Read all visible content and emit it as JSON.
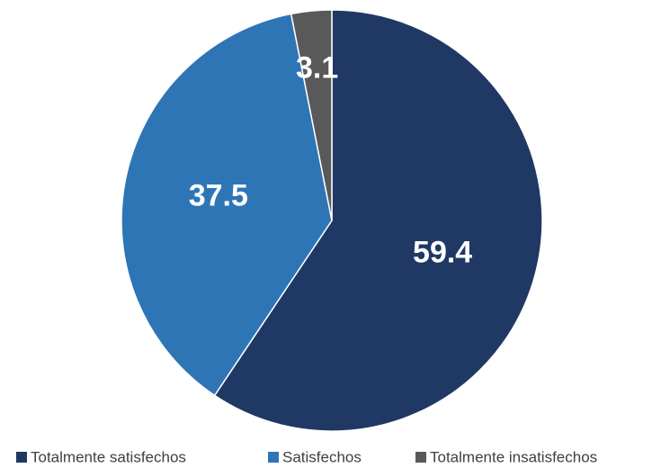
{
  "chart_data": {
    "type": "pie",
    "categories": [
      "Totalmente satisfechos",
      "Satisfechos",
      "Totalmente insatisfechos"
    ],
    "values": [
      59.4,
      37.5,
      3.1
    ],
    "colors": [
      "#203864",
      "#2e75b6",
      "#595959"
    ],
    "legend": "bottom"
  }
}
